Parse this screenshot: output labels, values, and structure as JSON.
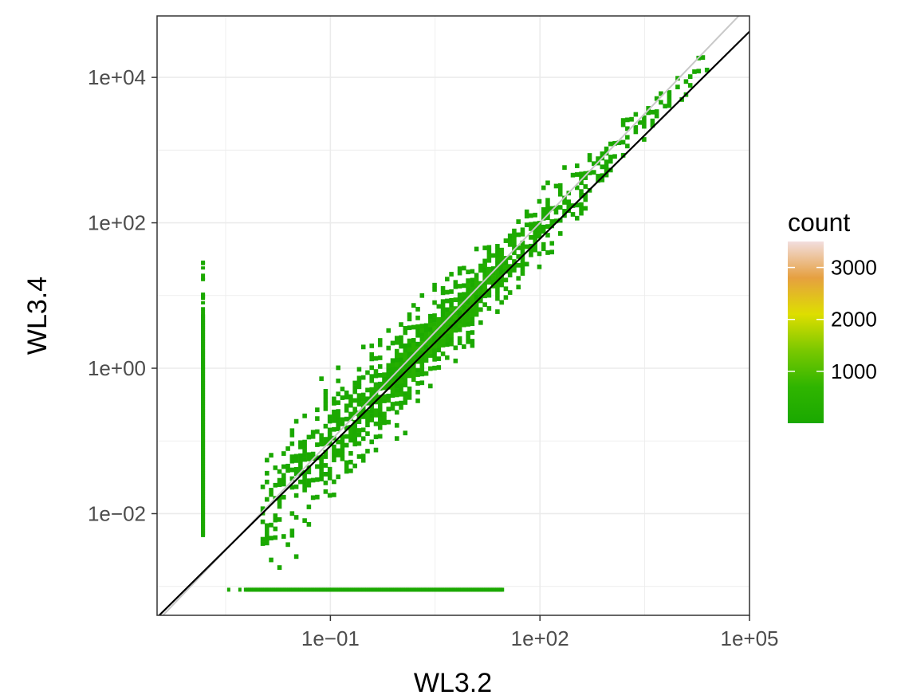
{
  "chart_data": {
    "type": "heatmap",
    "title": "",
    "xlabel": "WL3.2",
    "ylabel": "WL3.4",
    "x_scale": "log10",
    "y_scale": "log10",
    "xlim": [
      0.00033,
      100000
    ],
    "ylim": [
      0.0004,
      70000
    ],
    "x_ticks": [
      {
        "value": 0.1,
        "label": "1e−01"
      },
      {
        "value": 100,
        "label": "1e+02"
      },
      {
        "value": 100000,
        "label": "1e+05"
      }
    ],
    "y_ticks": [
      {
        "value": 0.01,
        "label": "1e−02"
      },
      {
        "value": 1,
        "label": "1e+00"
      },
      {
        "value": 100,
        "label": "1e+02"
      },
      {
        "value": 10000,
        "label": "1e+04"
      }
    ],
    "grid": true,
    "lines": [
      {
        "name": "identity",
        "color": "#c8c8c8",
        "slope": 1,
        "intercept_log10": 0
      },
      {
        "name": "fit",
        "color": "#000000",
        "slope": 0.95,
        "intercept_log10": -0.12
      }
    ],
    "main_cloud": {
      "x_range": [
        0.01,
        25000
      ],
      "center_slope": 0.98,
      "spread_log10_low": 0.55,
      "spread_log10_high": 0.12,
      "peak_count": 3400
    },
    "zero_strips": [
      {
        "axis": "x_at_min",
        "x": 0.0015,
        "y_range": [
          0.005,
          30
        ]
      },
      {
        "axis": "y_at_min",
        "y": 0.0009,
        "x_range": [
          0.0035,
          30
        ]
      }
    ],
    "legend": {
      "title": "count",
      "position": "right",
      "labels": [
        {
          "value": 1000,
          "label": "1000"
        },
        {
          "value": 2000,
          "label": "2000"
        },
        {
          "value": 3000,
          "label": "3000"
        }
      ],
      "min": 1,
      "max": 3500,
      "colors": [
        "#1aa800",
        "#2fb500",
        "#7ac800",
        "#dede00",
        "#e6a040",
        "#f2dede"
      ]
    }
  }
}
